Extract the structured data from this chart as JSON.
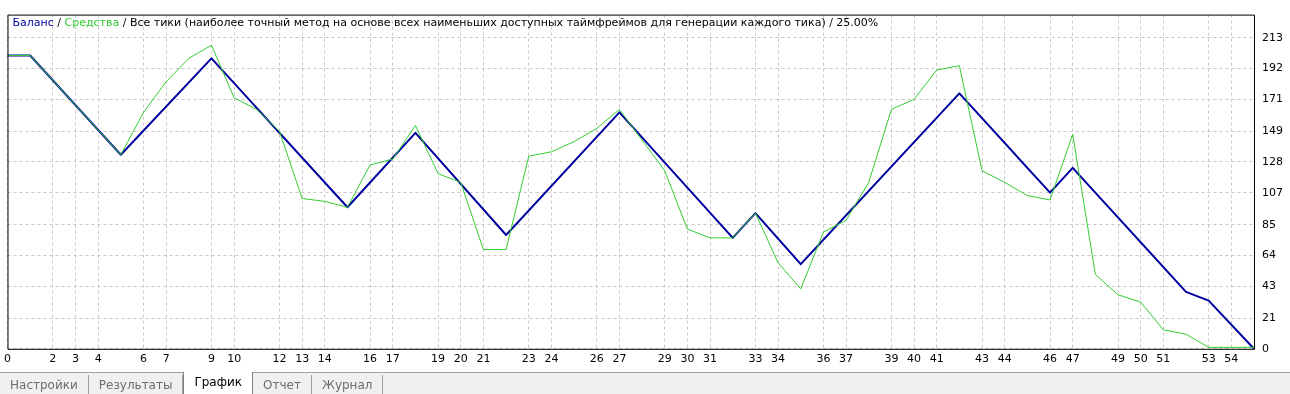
{
  "chart_data": {
    "type": "line",
    "title": "Все тики (наиболее точный метод на основе всех наименьших доступных таймфреймов для генерации каждого тика) / 25.00%",
    "series": [
      {
        "name": "Баланс",
        "color": "#0000a0",
        "x": [
          0,
          1,
          5,
          9,
          15,
          18,
          22,
          27,
          32,
          33,
          35,
          42,
          46,
          47,
          52,
          53,
          55
        ],
        "values": [
          201,
          201,
          133,
          199,
          97,
          148,
          78,
          162,
          76,
          93,
          58,
          175,
          107,
          124,
          39,
          33,
          0
        ]
      },
      {
        "name": "Средства",
        "color": "#32cd32",
        "x": [
          0,
          1,
          5,
          6,
          7,
          8,
          9,
          10,
          11,
          12,
          13,
          14,
          15,
          16,
          17,
          18,
          19,
          20,
          21,
          22,
          23,
          24,
          25,
          26,
          27,
          28,
          29,
          30,
          31,
          32,
          33,
          34,
          35,
          36,
          37,
          38,
          39,
          40,
          41,
          42,
          43,
          44,
          45,
          46,
          47,
          48,
          49,
          50,
          51,
          52,
          53,
          55
        ],
        "values": [
          201,
          201,
          133,
          162,
          183,
          199,
          208,
          172,
          164,
          149,
          103,
          101,
          97,
          126,
          130,
          153,
          120,
          114,
          68,
          68,
          132,
          135,
          142,
          151,
          164,
          143,
          122,
          82,
          76,
          76,
          93,
          59,
          41,
          80,
          88,
          114,
          164,
          171,
          191,
          194,
          122,
          114,
          105,
          102,
          147,
          51,
          37,
          32,
          13,
          10,
          1,
          1
        ]
      }
    ],
    "xlim": [
      0,
      55
    ],
    "xticks": [
      0,
      2,
      3,
      4,
      6,
      7,
      9,
      10,
      12,
      13,
      14,
      16,
      17,
      19,
      20,
      21,
      23,
      24,
      26,
      27,
      29,
      30,
      31,
      33,
      34,
      36,
      37,
      39,
      40,
      41,
      43,
      44,
      46,
      47,
      49,
      50,
      51,
      53,
      54
    ],
    "ylim": [
      0,
      229
    ],
    "yticks": [
      0,
      21,
      43,
      64,
      85,
      107,
      128,
      149,
      171,
      192,
      213
    ],
    "grid": true,
    "legend": "top left",
    "marker": "none",
    "line_style": "solid",
    "annotations": [
      "/",
      "Настройки",
      "Результаты",
      "График",
      "Отчет",
      "Журнал"
    ]
  }
}
